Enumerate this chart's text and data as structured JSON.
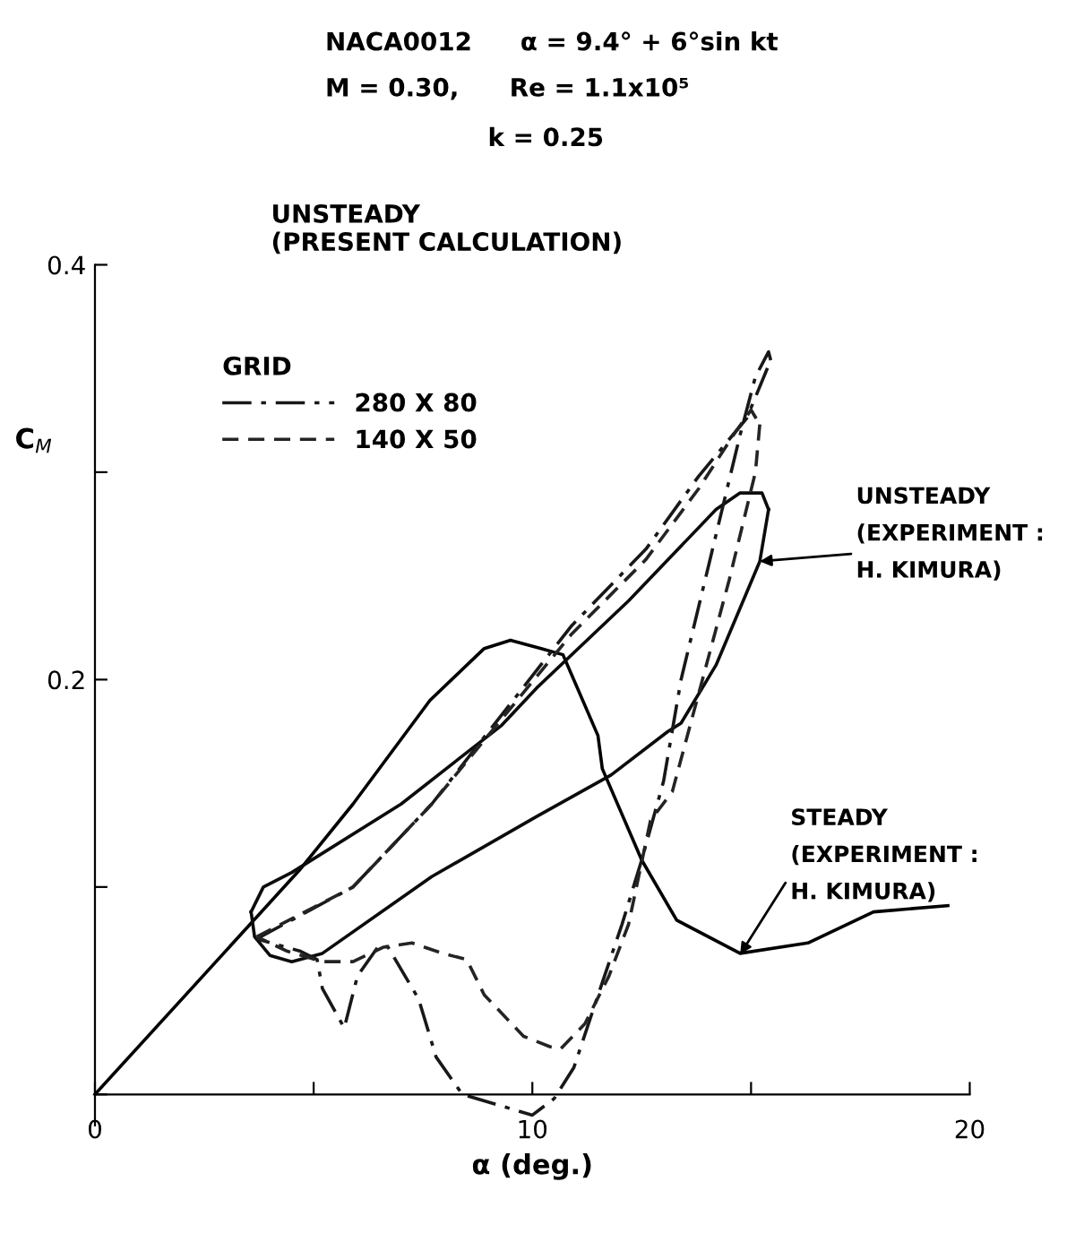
{
  "chart_data": {
    "type": "line",
    "annotations": [
      "NACA0012",
      "α = 9.4° + 6°sin kt",
      "M = 0.30,",
      "Re = 1.1x10⁵",
      "k = 0.25",
      "UNSTEADY\n(PRESENT CALCULATION)",
      {
        "text": "UNSTEADY\n(EXPERIMENT :\nH. KIMURA)",
        "x": 15.2,
        "y": 0.257
      },
      {
        "text": "STEADY\n(EXPERIMENT :\nH. KIMURA)",
        "x": 14.75,
        "y": 0.0675
      }
    ],
    "xlabel": "α (deg.)",
    "ylabel": "C$_{M}$",
    "legend_title": "GRID",
    "legend": "top left",
    "xlim": [
      0,
      20
    ],
    "ylim": [
      -0.015,
      0.4
    ],
    "xticks": [
      0,
      {
        "value": 5,
        "label": null
      },
      10,
      {
        "value": 15,
        "label": null
      },
      20
    ],
    "yticks": [
      {
        "value": 0,
        "label": null
      },
      {
        "value": 0.1,
        "label": null
      },
      0.2,
      {
        "value": 0.3,
        "label": null
      },
      0.4
    ],
    "grid": false,
    "series": [
      {
        "color": "#000000",
        "line_style": "solid",
        "x": [
          0,
          4.67,
          5.9,
          7.66,
          8.9,
          9.5,
          10.2,
          10.7,
          11.5,
          11.6,
          12.5,
          13.3,
          14.75,
          16.3,
          17.8,
          19.5
        ],
        "values": [
          0,
          0.108,
          0.14,
          0.19,
          0.215,
          0.219,
          0.215,
          0.212,
          0.173,
          0.157,
          0.113,
          0.084,
          0.068,
          0.073,
          0.088,
          0.091
        ]
      },
      {
        "color": "#0c0c0c",
        "line_style": "solid",
        "x": [
          3.57,
          3.85,
          4.5,
          7.0,
          9.3,
          10.1,
          12.2,
          14.2,
          14.75,
          15.25,
          15.4
        ],
        "values": [
          0.088,
          0.1,
          0.107,
          0.14,
          0.178,
          0.196,
          0.238,
          0.282,
          0.29,
          0.29,
          0.282
        ]
      },
      {
        "color": "#0c0c0c",
        "line_style": "solid",
        "x": [
          15.4,
          15.2,
          14.2,
          13.4,
          13.1,
          11.8,
          10.1,
          7.7,
          5.2,
          4.5,
          4.0,
          3.65,
          3.57
        ],
        "values": [
          0.282,
          0.257,
          0.207,
          0.179,
          0.175,
          0.154,
          0.134,
          0.105,
          0.068,
          0.064,
          0.067,
          0.076,
          0.088
        ]
      },
      {
        "name": "280 X 80",
        "color": "#181818",
        "line_style": "dashdot",
        "x": [
          3.7,
          5.9,
          7.7,
          10.9,
          12.6,
          13.8,
          14.9,
          15.45
        ],
        "values": [
          0.075,
          0.1,
          0.14,
          0.226,
          0.263,
          0.298,
          0.326,
          0.354
        ]
      },
      {
        "color": "#181818",
        "line_style": "dashdot",
        "x": [
          15.45,
          15.4,
          15.1,
          14.75,
          13.4,
          13.0,
          12.5,
          12.05,
          11.6,
          10.95,
          10.5,
          10.0,
          8.4,
          7.8,
          7.4,
          6.7,
          6.5,
          6.0,
          5.7,
          5.2,
          5.08,
          4.7,
          3.7
        ],
        "values": [
          0.354,
          0.358,
          0.346,
          0.318,
          0.2,
          0.151,
          0.113,
          0.082,
          0.054,
          0.013,
          -0.002,
          -0.01,
          0,
          0.018,
          0.046,
          0.071,
          0.072,
          0.057,
          0.032,
          0.051,
          0.065,
          0.069,
          0.075
        ]
      },
      {
        "name": "140 X 50",
        "color": "#242424",
        "line_style": "dashed",
        "x": [
          3.7,
          5.9,
          7.7,
          10.9,
          12.6,
          13.8,
          14.6,
          15.0,
          15.2
        ],
        "values": [
          0.076,
          0.1,
          0.14,
          0.222,
          0.258,
          0.292,
          0.318,
          0.33,
          0.323
        ]
      },
      {
        "color": "#242424",
        "line_style": "dashed",
        "x": [
          15.2,
          15.1,
          14.5,
          13.8,
          13.2,
          12.7,
          12.2,
          11.75,
          11.2,
          10.65,
          10.4,
          9.8,
          8.9,
          8.5,
          7.95,
          7.25,
          6.6,
          5.9,
          5.2,
          4.4,
          3.7
        ],
        "values": [
          0.323,
          0.3,
          0.248,
          0.193,
          0.146,
          0.132,
          0.082,
          0.057,
          0.034,
          0.022,
          0.023,
          0.028,
          0.048,
          0.065,
          0.068,
          0.073,
          0.071,
          0.064,
          0.064,
          0.069,
          0.076
        ]
      }
    ]
  }
}
